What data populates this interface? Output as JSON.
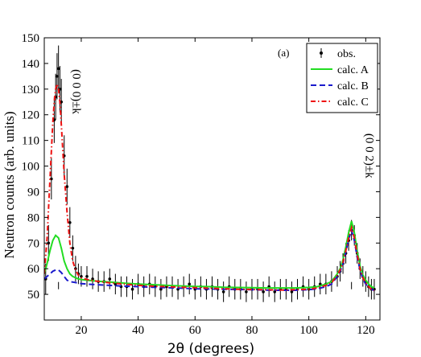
{
  "chart_data": {
    "type": "line",
    "panel_label": "(a)",
    "xlabel": "2θ (degrees)",
    "ylabel": "Neutron counts (arb. units)",
    "xlim": [
      7,
      125
    ],
    "ylim": [
      40,
      150
    ],
    "xticks": [
      20,
      40,
      60,
      80,
      100,
      120
    ],
    "yticks": [
      50,
      60,
      70,
      80,
      90,
      100,
      110,
      120,
      130,
      140,
      150
    ],
    "legend_position": "top-right",
    "annotations": [
      {
        "text": "(0 0 0)±k",
        "x": 12,
        "y": 52
      },
      {
        "text": "(0 0 2)±k",
        "x": 115,
        "y": 52
      }
    ],
    "observed": {
      "name": "obs.",
      "color": "#000000",
      "x": [
        7.5,
        8.5,
        9.5,
        10.5,
        11.0,
        11.5,
        12.0,
        12.5,
        13.0,
        14.0,
        15.0,
        16.0,
        17.0,
        18.0,
        19.0,
        20.0,
        22.0,
        24.0,
        26.0,
        28.0,
        30.0,
        32.0,
        34.0,
        36.0,
        38.0,
        40.0,
        42.0,
        44.0,
        46.0,
        48.0,
        50.0,
        52.0,
        54.0,
        56.0,
        58.0,
        60.0,
        62.0,
        64.0,
        66.0,
        68.0,
        70.0,
        72.0,
        74.0,
        76.0,
        78.0,
        80.0,
        82.0,
        84.0,
        86.0,
        88.0,
        90.0,
        92.0,
        94.0,
        96.0,
        98.0,
        100.0,
        102.0,
        104.0,
        106.0,
        108.0,
        110.0,
        111.0,
        112.0,
        113.0,
        114.0,
        115.0,
        116.0,
        117.0,
        118.0,
        119.0,
        120.0,
        121.0,
        122.0,
        123.0
      ],
      "y": [
        56,
        70,
        95,
        118,
        127,
        135,
        138,
        130,
        125,
        104,
        92,
        78,
        68,
        60,
        58,
        57,
        57,
        56,
        55,
        55,
        56,
        54,
        53,
        53,
        52,
        54,
        53,
        54,
        53,
        52,
        53,
        53,
        52,
        53,
        54,
        52,
        53,
        52,
        53,
        52,
        51,
        53,
        52,
        52,
        51,
        52,
        52,
        51,
        53,
        51,
        52,
        52,
        51,
        52,
        53,
        52,
        53,
        54,
        54,
        55,
        57,
        59,
        62,
        66,
        71,
        75,
        73,
        66,
        60,
        57,
        55,
        53,
        52,
        52
      ],
      "errors": [
        6,
        7,
        8,
        9,
        9,
        9,
        9,
        9,
        9,
        8,
        7,
        6,
        5,
        5,
        4,
        4,
        4,
        4,
        4,
        4,
        4,
        4,
        4,
        4,
        4,
        4,
        4,
        4,
        4,
        4,
        4,
        4,
        4,
        4,
        4,
        4,
        4,
        4,
        4,
        4,
        4,
        4,
        4,
        4,
        4,
        4,
        4,
        4,
        4,
        4,
        4,
        4,
        4,
        4,
        4,
        4,
        4,
        4,
        4,
        4,
        4,
        4,
        4,
        4,
        4,
        4,
        4,
        4,
        4,
        4,
        4,
        4,
        4,
        4
      ]
    },
    "series": [
      {
        "name": "calc. A",
        "color": "#22dd22",
        "style": "solid",
        "x": [
          7,
          8,
          9,
          10,
          11,
          12,
          13,
          14,
          15,
          16,
          17,
          18,
          19,
          20,
          22,
          25,
          30,
          35,
          40,
          45,
          50,
          55,
          60,
          65,
          70,
          75,
          80,
          85,
          90,
          95,
          100,
          103,
          106,
          108,
          110,
          111,
          112,
          113,
          114,
          115,
          116,
          117,
          118,
          119,
          120,
          121,
          122,
          123
        ],
        "y": [
          58,
          62,
          67,
          71,
          73,
          72,
          68,
          63,
          60,
          58,
          57,
          56.5,
          56,
          55.8,
          55.5,
          55.2,
          54.8,
          54.4,
          54,
          53.8,
          53.5,
          53.3,
          53.1,
          53,
          52.8,
          52.7,
          52.6,
          52.5,
          52.5,
          52.5,
          52.7,
          53,
          54,
          55,
          58,
          60,
          63.5,
          68.5,
          74,
          78.5,
          74,
          67,
          61,
          57.5,
          55.5,
          54,
          53,
          52.5
        ]
      },
      {
        "name": "calc. B",
        "color": "#1a1acc",
        "style": "dashed",
        "x": [
          7,
          8,
          9,
          10,
          11,
          12,
          13,
          14,
          15,
          16,
          17,
          18,
          19,
          20,
          22,
          25,
          30,
          35,
          40,
          45,
          50,
          55,
          60,
          65,
          70,
          75,
          80,
          85,
          90,
          95,
          100,
          103,
          106,
          108,
          110,
          111,
          112,
          113,
          114,
          115,
          116,
          117,
          118,
          119,
          120,
          121,
          122,
          123
        ],
        "y": [
          56,
          57,
          58,
          59,
          59.5,
          59.5,
          58.5,
          57,
          55.5,
          55,
          54.8,
          54.6,
          54.4,
          54.2,
          54,
          53.8,
          53.5,
          53.2,
          53,
          52.8,
          52.6,
          52.4,
          52.2,
          52.1,
          52,
          51.9,
          51.8,
          51.7,
          51.6,
          51.6,
          51.8,
          52.2,
          53,
          54,
          57,
          59,
          62,
          66.5,
          71.5,
          75,
          71,
          64.5,
          59.5,
          56,
          54,
          53,
          52,
          51.5
        ]
      },
      {
        "name": "calc. C",
        "color": "#ee1111",
        "style": "dashdot",
        "x": [
          7,
          8,
          9,
          10,
          10.5,
          11,
          11.5,
          12,
          12.5,
          13,
          14,
          15,
          16,
          17,
          18,
          19,
          20,
          22,
          25,
          30,
          35,
          40,
          45,
          50,
          55,
          60,
          65,
          70,
          75,
          80,
          85,
          90,
          95,
          100,
          103,
          106,
          108,
          110,
          111,
          112,
          113,
          114,
          115,
          116,
          117,
          118,
          119,
          120,
          121,
          122,
          123
        ],
        "y": [
          58,
          72,
          95,
          117,
          125,
          130,
          132,
          130,
          125,
          116,
          97,
          82,
          70,
          63,
          59.5,
          57.5,
          56.5,
          55.8,
          55.2,
          54.5,
          54,
          53.5,
          53.2,
          53,
          52.8,
          52.6,
          52.4,
          52.2,
          52,
          51.9,
          51.8,
          51.7,
          51.8,
          52,
          52.5,
          53.5,
          54.5,
          57.5,
          59.5,
          62.5,
          67,
          72,
          76,
          72,
          65.5,
          60,
          56.5,
          54.5,
          53,
          52,
          51.5
        ]
      }
    ]
  }
}
